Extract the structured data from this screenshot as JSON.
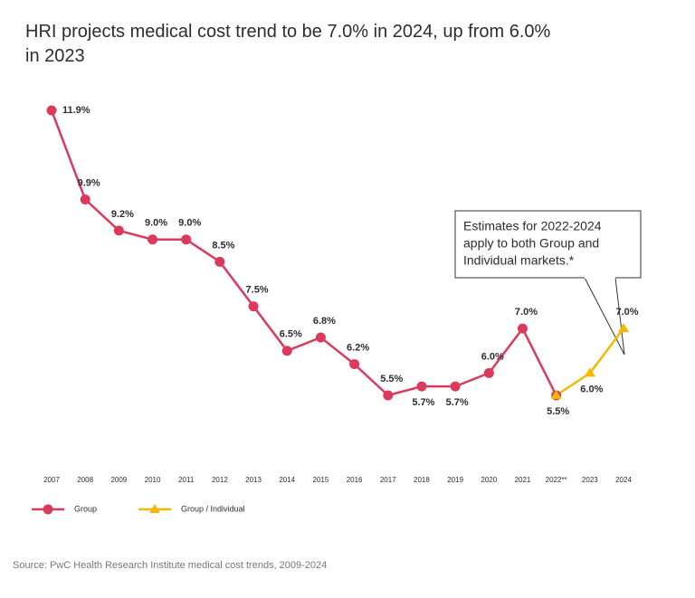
{
  "chart_data": {
    "type": "line",
    "title": "HRI projects medical cost trend to be 7.0% in 2024, up from 6.0% in 2023",
    "categories": [
      "2007",
      "2008",
      "2009",
      "2010",
      "2011",
      "2012",
      "2013",
      "2014",
      "2015",
      "2016",
      "2017",
      "2018",
      "2019",
      "2020",
      "2021",
      "2022**",
      "2023",
      "2024"
    ],
    "series": [
      {
        "name": "Group",
        "color": "#dc3a5c",
        "marker": "circle",
        "values": [
          11.9,
          9.9,
          9.2,
          9.0,
          9.0,
          8.5,
          7.5,
          6.5,
          6.8,
          6.2,
          5.5,
          5.7,
          5.7,
          6.0,
          7.0,
          5.5,
          null,
          null
        ],
        "value_labels": [
          "11.9%",
          "9.9%",
          "9.2%",
          "9.0%",
          "9.0%",
          "8.5%",
          "7.5%",
          "6.5%",
          "6.8%",
          "6.2%",
          "5.5%",
          "5.7%",
          "5.7%",
          "6.0%",
          "7.0%",
          "5.5%",
          null,
          null
        ]
      },
      {
        "name": "Group / Individual",
        "color": "#f5b800",
        "marker": "triangle",
        "values": [
          null,
          null,
          null,
          null,
          null,
          null,
          null,
          null,
          null,
          null,
          null,
          null,
          null,
          null,
          null,
          5.5,
          6.0,
          7.0
        ],
        "value_labels": [
          null,
          null,
          null,
          null,
          null,
          null,
          null,
          null,
          null,
          null,
          null,
          null,
          null,
          null,
          null,
          null,
          "6.0%",
          "7.0%"
        ]
      }
    ],
    "annotation": [
      "Estimates for 2022-2024",
      "apply to both Group and",
      "Individual markets.*"
    ],
    "source": "Source: PwC Health Research Institute medical cost trends, 2009-2024"
  }
}
